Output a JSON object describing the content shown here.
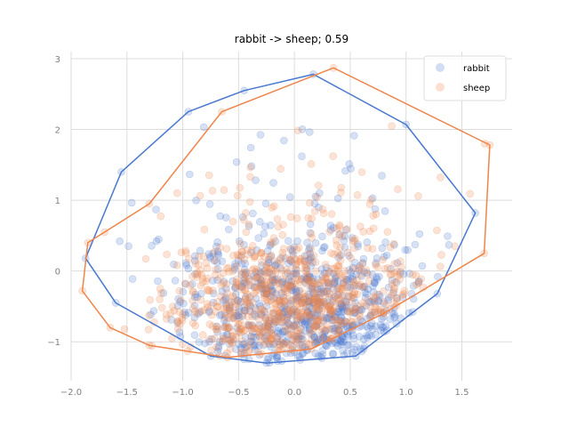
{
  "chart_data": {
    "type": "scatter",
    "title": "rabbit -> sheep; 0.59",
    "xlabel": "",
    "ylabel": "",
    "xlim": [
      -2.0,
      1.95
    ],
    "ylim": [
      -1.55,
      3.1
    ],
    "xticks": [
      -2.0,
      -1.5,
      -1.0,
      -0.5,
      0.0,
      0.5,
      1.0,
      1.5
    ],
    "xtick_labels": [
      "−2.0",
      "−1.5",
      "−1.0",
      "−0.5",
      "0.0",
      "0.5",
      "1.0",
      "1.5"
    ],
    "yticks": [
      -1,
      0,
      1,
      2,
      3
    ],
    "ytick_labels": [
      "−1",
      "0",
      "1",
      "2",
      "3"
    ],
    "grid": true,
    "legend_position": "top-right",
    "series": [
      {
        "name": "rabbit",
        "color": "#4878cf",
        "cluster": {
          "center": [
            0.1,
            -0.6
          ],
          "spread": [
            0.55,
            0.55
          ],
          "count": 700,
          "outer_count": 90,
          "outer_spread": [
            0.75,
            0.9
          ],
          "outer_center": [
            0.0,
            0.4
          ],
          "seed": 11
        },
        "hull": [
          [
            0.17,
            2.78
          ],
          [
            1.0,
            2.07
          ],
          [
            1.62,
            0.82
          ],
          [
            1.28,
            -0.32
          ],
          [
            0.55,
            -1.2
          ],
          [
            -0.25,
            -1.3
          ],
          [
            -0.75,
            -1.2
          ],
          [
            -1.6,
            -0.45
          ],
          [
            -1.87,
            0.18
          ],
          [
            -1.55,
            1.4
          ],
          [
            -0.95,
            2.25
          ],
          [
            -0.45,
            2.55
          ]
        ]
      },
      {
        "name": "sheep",
        "color": "#ee854a",
        "cluster": {
          "center": [
            -0.05,
            -0.5
          ],
          "spread": [
            0.55,
            0.5
          ],
          "count": 700,
          "outer_count": 90,
          "outer_spread": [
            0.8,
            0.8
          ],
          "outer_center": [
            0.1,
            0.3
          ],
          "seed": 29
        },
        "hull": [
          [
            0.35,
            2.87
          ],
          [
            1.75,
            1.78
          ],
          [
            1.7,
            0.25
          ],
          [
            0.8,
            -0.6
          ],
          [
            0.15,
            -1.1
          ],
          [
            -0.6,
            -1.22
          ],
          [
            -1.3,
            -1.05
          ],
          [
            -1.65,
            -0.8
          ],
          [
            -1.9,
            -0.28
          ],
          [
            -1.85,
            0.4
          ],
          [
            -1.7,
            0.55
          ],
          [
            -1.3,
            0.95
          ],
          [
            -0.65,
            2.25
          ]
        ]
      }
    ]
  }
}
